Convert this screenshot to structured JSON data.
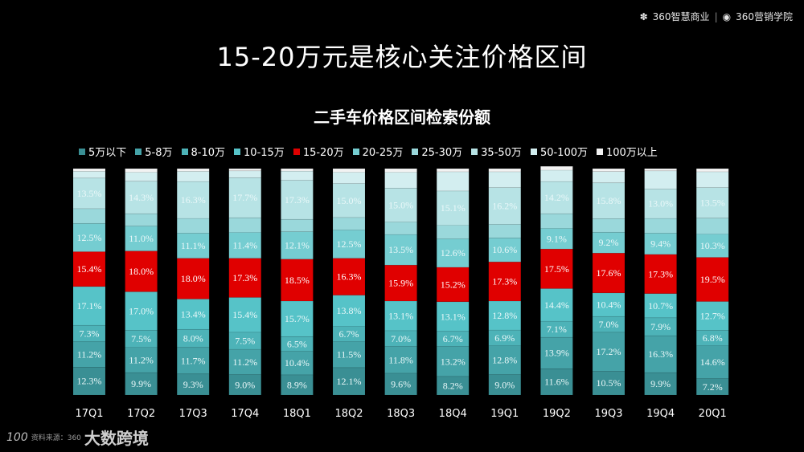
{
  "brand": {
    "name1": "360智慧商业",
    "name2": "360营销学院"
  },
  "page_title": "15-20万元是核心关注价格区间",
  "watermark": {
    "logo": "100",
    "source": "资料来源：360",
    "name": "大数跨境"
  },
  "chart_data": {
    "type": "bar",
    "stacked": true,
    "title": "二手车价格区间检索份额",
    "xlabel": "",
    "ylabel": "",
    "ylim": [
      0,
      100
    ],
    "unit": "%",
    "grid": false,
    "legend_position": "top",
    "categories": [
      "17Q1",
      "17Q2",
      "17Q3",
      "17Q4",
      "18Q1",
      "18Q2",
      "18Q3",
      "18Q4",
      "19Q1",
      "19Q2",
      "19Q3",
      "19Q4",
      "20Q1"
    ],
    "series": [
      {
        "name": "5万以下",
        "color": "#3a8f94",
        "values": [
          12.3,
          9.9,
          9.3,
          9.0,
          8.9,
          12.1,
          9.6,
          8.2,
          9.0,
          11.6,
          10.5,
          9.9,
          7.2
        ]
      },
      {
        "name": "5-8万",
        "color": "#45a3a8",
        "values": [
          11.2,
          11.2,
          11.7,
          11.2,
          10.4,
          11.5,
          11.8,
          13.2,
          12.8,
          13.9,
          17.2,
          16.3,
          14.6
        ]
      },
      {
        "name": "8-10万",
        "color": "#4db3b8",
        "values": [
          7.3,
          7.5,
          8.0,
          7.5,
          6.5,
          6.7,
          7.0,
          6.7,
          6.9,
          7.1,
          7.0,
          7.9,
          6.8
        ]
      },
      {
        "name": "10-15万",
        "color": "#56c3c8",
        "values": [
          17.1,
          17.0,
          13.4,
          15.4,
          15.7,
          13.8,
          13.1,
          13.1,
          12.8,
          14.4,
          10.4,
          10.7,
          12.7
        ]
      },
      {
        "name": "15-20万",
        "color": "#e00000",
        "values": [
          15.4,
          18.0,
          18.0,
          17.3,
          18.5,
          16.3,
          15.9,
          15.2,
          17.3,
          17.5,
          17.6,
          17.3,
          19.5
        ]
      },
      {
        "name": "20-25万",
        "color": "#75cdd1",
        "values": [
          12.5,
          11.0,
          11.1,
          11.4,
          12.1,
          12.5,
          13.5,
          12.6,
          10.6,
          9.1,
          9.2,
          9.4,
          10.3
        ]
      },
      {
        "name": "25-30万",
        "color": "#9ad8db",
        "values": [
          6.5,
          5.5,
          6.5,
          6.5,
          5.5,
          5.5,
          5.5,
          6.0,
          6.0,
          6.5,
          6.0,
          6.5,
          7.0
        ]
      },
      {
        "name": "35-50万",
        "color": "#b7e3e5",
        "values": [
          13.5,
          14.3,
          16.3,
          17.7,
          17.3,
          15.0,
          15.0,
          15.1,
          16.2,
          14.2,
          15.8,
          13.0,
          13.5
        ]
      },
      {
        "name": "50-100万",
        "color": "#d3eef0",
        "values": [
          3.0,
          4.0,
          4.5,
          3.0,
          4.0,
          5.0,
          7.0,
          8.5,
          7.0,
          5.0,
          5.0,
          8.0,
          7.0
        ]
      },
      {
        "name": "100万以上",
        "color": "#f2f2f2",
        "values": [
          1.2,
          1.6,
          1.2,
          1.0,
          1.1,
          1.6,
          1.6,
          1.4,
          1.4,
          1.7,
          1.3,
          1.0,
          1.4
        ]
      }
    ],
    "labeled_series": [
      "5万以下",
      "5-8万",
      "8-10万",
      "10-15万",
      "15-20万",
      "20-25万",
      "35-50万"
    ]
  }
}
